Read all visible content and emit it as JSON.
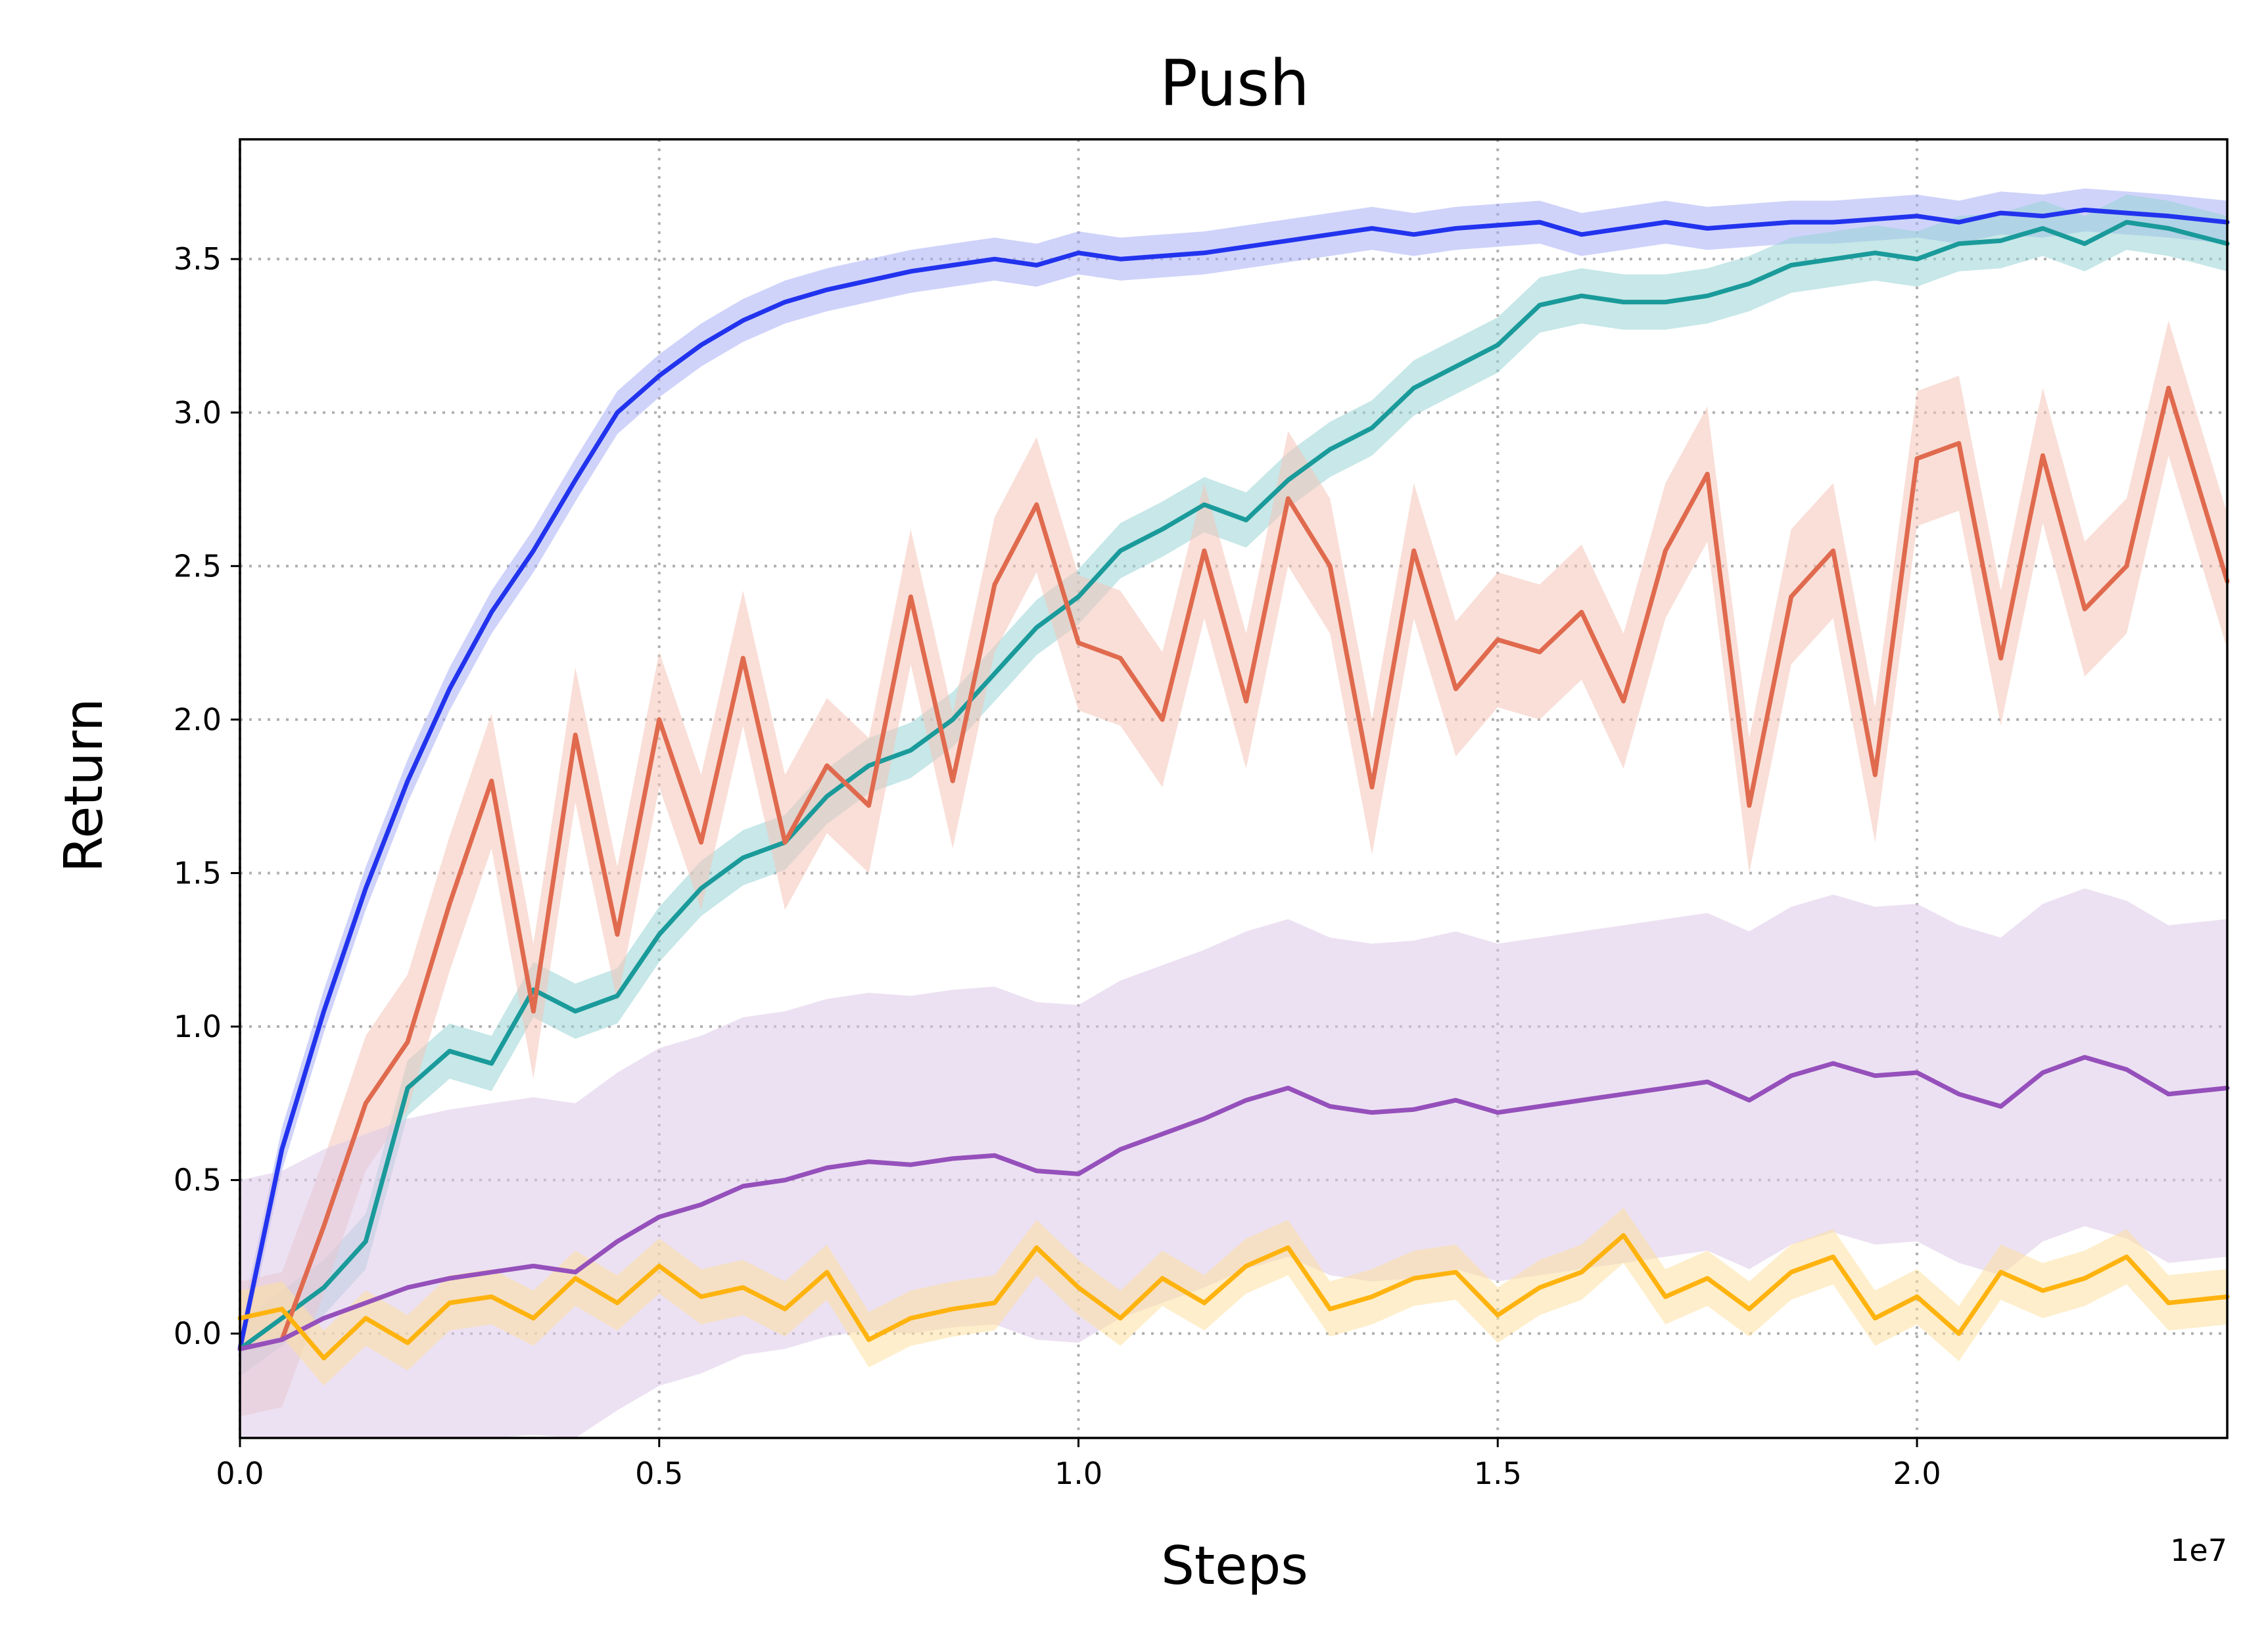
{
  "chart_data": {
    "type": "line",
    "title": "Push",
    "xlabel": "Steps",
    "ylabel": "Return",
    "x_offset_label": "1e7",
    "xlim": [
      0.0,
      2.37
    ],
    "ylim": [
      -0.34,
      3.89
    ],
    "xticks": [
      0.0,
      0.5,
      1.0,
      1.5,
      2.0
    ],
    "xtick_labels": [
      "0.0",
      "0.5",
      "1.0",
      "1.5",
      "2.0"
    ],
    "yticks": [
      0.0,
      0.5,
      1.0,
      1.5,
      2.0,
      2.5,
      3.0,
      3.5
    ],
    "ytick_labels": [
      "0.0",
      "0.5",
      "1.0",
      "1.5",
      "2.0",
      "2.5",
      "3.0",
      "3.5"
    ],
    "grid": true,
    "series": [
      {
        "color": "#2233ee",
        "band_color": "#a8aef5",
        "x": [
          0,
          0.05,
          0.1,
          0.15,
          0.2,
          0.25,
          0.3,
          0.35,
          0.4,
          0.45,
          0.5,
          0.55,
          0.6,
          0.65,
          0.7,
          0.75,
          0.8,
          0.85,
          0.9,
          0.95,
          1.0,
          1.05,
          1.1,
          1.15,
          1.2,
          1.25,
          1.3,
          1.35,
          1.4,
          1.45,
          1.5,
          1.55,
          1.6,
          1.65,
          1.7,
          1.75,
          1.8,
          1.85,
          1.9,
          1.95,
          2.0,
          2.05,
          2.1,
          2.15,
          2.2,
          2.25,
          2.3,
          2.37
        ],
        "y": [
          -0.05,
          0.6,
          1.05,
          1.45,
          1.8,
          2.1,
          2.35,
          2.55,
          2.78,
          3.0,
          3.12,
          3.22,
          3.3,
          3.36,
          3.4,
          3.43,
          3.46,
          3.48,
          3.5,
          3.48,
          3.52,
          3.5,
          3.51,
          3.52,
          3.54,
          3.56,
          3.58,
          3.6,
          3.58,
          3.6,
          3.61,
          3.62,
          3.58,
          3.6,
          3.62,
          3.6,
          3.61,
          3.62,
          3.62,
          3.63,
          3.64,
          3.62,
          3.65,
          3.64,
          3.66,
          3.65,
          3.64,
          3.62
        ],
        "band": 0.07
      },
      {
        "color": "#1a9a9a",
        "band_color": "#99d3d6",
        "x": [
          0,
          0.05,
          0.1,
          0.15,
          0.2,
          0.25,
          0.3,
          0.35,
          0.4,
          0.45,
          0.5,
          0.55,
          0.6,
          0.65,
          0.7,
          0.75,
          0.8,
          0.85,
          0.9,
          0.95,
          1.0,
          1.05,
          1.1,
          1.15,
          1.2,
          1.25,
          1.3,
          1.35,
          1.4,
          1.45,
          1.5,
          1.55,
          1.6,
          1.65,
          1.7,
          1.75,
          1.8,
          1.85,
          1.9,
          1.95,
          2.0,
          2.05,
          2.1,
          2.15,
          2.2,
          2.25,
          2.3,
          2.37
        ],
        "y": [
          -0.05,
          0.05,
          0.15,
          0.3,
          0.8,
          0.92,
          0.88,
          1.12,
          1.05,
          1.1,
          1.3,
          1.45,
          1.55,
          1.6,
          1.75,
          1.85,
          1.9,
          2.0,
          2.15,
          2.3,
          2.4,
          2.55,
          2.62,
          2.7,
          2.65,
          2.78,
          2.88,
          2.95,
          3.08,
          3.15,
          3.22,
          3.35,
          3.38,
          3.36,
          3.36,
          3.38,
          3.42,
          3.48,
          3.5,
          3.52,
          3.5,
          3.55,
          3.56,
          3.6,
          3.55,
          3.62,
          3.6,
          3.55
        ],
        "band": 0.09
      },
      {
        "color": "#e06a4e",
        "band_color": "#f4c5b8",
        "x": [
          0,
          0.05,
          0.1,
          0.15,
          0.2,
          0.25,
          0.3,
          0.35,
          0.4,
          0.45,
          0.5,
          0.55,
          0.6,
          0.65,
          0.7,
          0.75,
          0.8,
          0.85,
          0.9,
          0.95,
          1.0,
          1.05,
          1.1,
          1.15,
          1.2,
          1.25,
          1.3,
          1.35,
          1.4,
          1.45,
          1.5,
          1.55,
          1.6,
          1.65,
          1.7,
          1.75,
          1.8,
          1.85,
          1.9,
          1.95,
          2.0,
          2.05,
          2.1,
          2.15,
          2.2,
          2.25,
          2.3,
          2.37
        ],
        "y": [
          -0.05,
          -0.02,
          0.35,
          0.75,
          0.95,
          1.4,
          1.8,
          1.05,
          1.95,
          1.3,
          2.0,
          1.6,
          2.2,
          1.6,
          1.85,
          1.72,
          2.4,
          1.8,
          2.44,
          2.7,
          2.25,
          2.2,
          2.0,
          2.55,
          2.06,
          2.72,
          2.5,
          1.78,
          2.55,
          2.1,
          2.26,
          2.22,
          2.35,
          2.06,
          2.55,
          2.8,
          1.72,
          2.4,
          2.55,
          1.82,
          2.85,
          2.9,
          2.2,
          2.86,
          2.36,
          2.5,
          3.08,
          2.45
        ],
        "band": 0.22
      },
      {
        "color": "#9550bb",
        "band_color": "#dcc8e8",
        "x": [
          0,
          0.05,
          0.1,
          0.15,
          0.2,
          0.25,
          0.3,
          0.35,
          0.4,
          0.45,
          0.5,
          0.55,
          0.6,
          0.65,
          0.7,
          0.75,
          0.8,
          0.85,
          0.9,
          0.95,
          1.0,
          1.05,
          1.1,
          1.15,
          1.2,
          1.25,
          1.3,
          1.35,
          1.4,
          1.45,
          1.5,
          1.55,
          1.6,
          1.65,
          1.7,
          1.75,
          1.8,
          1.85,
          1.9,
          1.95,
          2.0,
          2.05,
          2.1,
          2.15,
          2.2,
          2.25,
          2.3,
          2.37
        ],
        "y": [
          -0.05,
          -0.02,
          0.05,
          0.1,
          0.15,
          0.18,
          0.2,
          0.22,
          0.2,
          0.3,
          0.38,
          0.42,
          0.48,
          0.5,
          0.54,
          0.56,
          0.55,
          0.57,
          0.58,
          0.53,
          0.52,
          0.6,
          0.65,
          0.7,
          0.76,
          0.8,
          0.74,
          0.72,
          0.73,
          0.76,
          0.72,
          0.74,
          0.76,
          0.78,
          0.8,
          0.82,
          0.76,
          0.84,
          0.88,
          0.84,
          0.85,
          0.78,
          0.74,
          0.85,
          0.9,
          0.86,
          0.78,
          0.8
        ],
        "band": 0.55
      },
      {
        "color": "#ffb30f",
        "band_color": "#fde0a0",
        "x": [
          0,
          0.05,
          0.1,
          0.15,
          0.2,
          0.25,
          0.3,
          0.35,
          0.4,
          0.45,
          0.5,
          0.55,
          0.6,
          0.65,
          0.7,
          0.75,
          0.8,
          0.85,
          0.9,
          0.95,
          1.0,
          1.05,
          1.1,
          1.15,
          1.2,
          1.25,
          1.3,
          1.35,
          1.4,
          1.45,
          1.5,
          1.55,
          1.6,
          1.65,
          1.7,
          1.75,
          1.8,
          1.85,
          1.9,
          1.95,
          2.0,
          2.05,
          2.1,
          2.15,
          2.2,
          2.25,
          2.3,
          2.37
        ],
        "y": [
          0.05,
          0.08,
          -0.08,
          0.05,
          -0.03,
          0.1,
          0.12,
          0.05,
          0.18,
          0.1,
          0.22,
          0.12,
          0.15,
          0.08,
          0.2,
          -0.02,
          0.05,
          0.08,
          0.1,
          0.28,
          0.15,
          0.05,
          0.18,
          0.1,
          0.22,
          0.28,
          0.08,
          0.12,
          0.18,
          0.2,
          0.06,
          0.15,
          0.2,
          0.32,
          0.12,
          0.18,
          0.08,
          0.2,
          0.25,
          0.05,
          0.12,
          0.0,
          0.2,
          0.14,
          0.18,
          0.25,
          0.1,
          0.12
        ],
        "band": 0.09
      }
    ]
  }
}
